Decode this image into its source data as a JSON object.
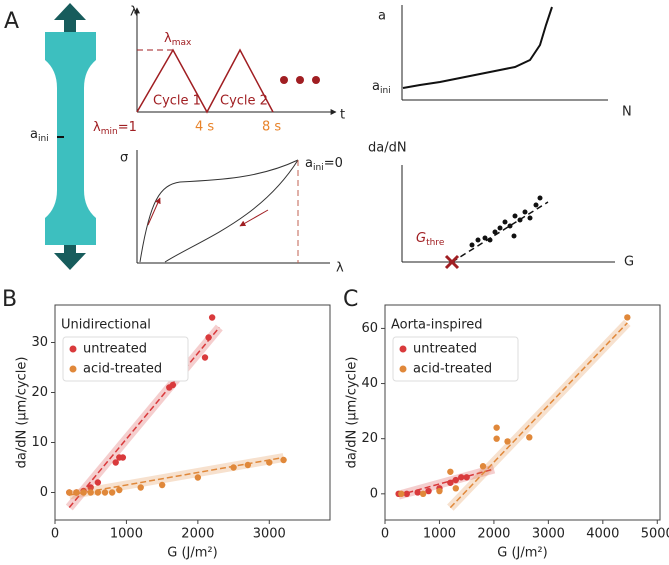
{
  "panel_a": {
    "label": "A",
    "specimen": {
      "a_main": "a",
      "a_sub": "ini"
    },
    "lambda_t": {
      "y_label": "λ",
      "x_label": "t",
      "max_main": "λ",
      "max_sub": "max",
      "min_main": "λ",
      "min_sub": "min",
      "min_eq": "=1",
      "cycle1": "Cycle 1",
      "cycle2": "Cycle 2",
      "t1": "4 s",
      "t2": "8 s"
    },
    "sigma_lambda": {
      "y_label": "σ",
      "x_label": "λ",
      "a_main": "a",
      "a_sub": "ini",
      "a_eq": "=0"
    },
    "a_n": {
      "y_label": "a",
      "x_label": "N",
      "a_main": "a",
      "a_sub": "ini"
    },
    "dadn_g": {
      "y_label": "da/dN",
      "x_label": "G",
      "g_main": "G",
      "g_sub": "thre"
    }
  },
  "chart_data": [
    {
      "type": "scatter",
      "panel": "B",
      "title": "Unidirectional",
      "x_label": "G (J/m²)",
      "y_label": "da/dN (µm/cycle)",
      "xlim": [
        0,
        3850
      ],
      "ylim": [
        -5.5,
        37.5
      ],
      "xticks": [
        0,
        1000,
        2000,
        3000
      ],
      "yticks": [
        0,
        10,
        20,
        30
      ],
      "series": [
        {
          "name": "untreated",
          "color": "#d93a3c",
          "x": [
            200,
            300,
            400,
            500,
            600,
            850,
            900,
            950,
            1600,
            1650,
            2100,
            2150,
            2200
          ],
          "values": [
            0,
            0,
            0.3,
            1,
            2,
            6,
            7,
            7,
            21,
            21.5,
            27,
            31,
            35
          ],
          "fit_x": [
            200,
            2300
          ],
          "fit_values": [
            -3,
            33
          ]
        },
        {
          "name": "acid-treated",
          "color": "#e0883a",
          "x": [
            200,
            300,
            400,
            500,
            600,
            700,
            800,
            900,
            1200,
            1500,
            2000,
            2500,
            2700,
            3000,
            3200
          ],
          "values": [
            0,
            0,
            0,
            0,
            0,
            0,
            0,
            0.5,
            1,
            1.5,
            3,
            5,
            5.5,
            6,
            6.5
          ],
          "fit_x": [
            200,
            3200
          ],
          "fit_values": [
            -0.5,
            7
          ]
        }
      ]
    },
    {
      "type": "scatter",
      "panel": "C",
      "title": "Aorta-inspired",
      "x_label": "G (J/m²)",
      "y_label": "da/dN (µm/cycle)",
      "xlim": [
        0,
        5050
      ],
      "ylim": [
        -9.5,
        68.5
      ],
      "xticks": [
        0,
        1000,
        2000,
        3000,
        4000,
        5000
      ],
      "yticks": [
        0,
        20,
        40,
        60
      ],
      "series": [
        {
          "name": "untreated",
          "color": "#d93a3c",
          "x": [
            250,
            400,
            600,
            800,
            1000,
            1200,
            1300,
            1400,
            1500
          ],
          "values": [
            0,
            0,
            0.5,
            1,
            2,
            4,
            5,
            6,
            6
          ],
          "fit_x": [
            250,
            2000
          ],
          "fit_values": [
            -0.5,
            9
          ]
        },
        {
          "name": "acid-treated",
          "color": "#e0883a",
          "x": [
            300,
            700,
            1000,
            1200,
            1300,
            1800,
            2050,
            2050,
            2250,
            2650,
            4450
          ],
          "values": [
            0,
            0,
            1,
            8,
            2,
            10,
            24,
            20,
            19,
            20.5,
            64
          ],
          "fit_x": [
            1200,
            4450
          ],
          "fit_values": [
            -5,
            62
          ]
        }
      ]
    }
  ]
}
